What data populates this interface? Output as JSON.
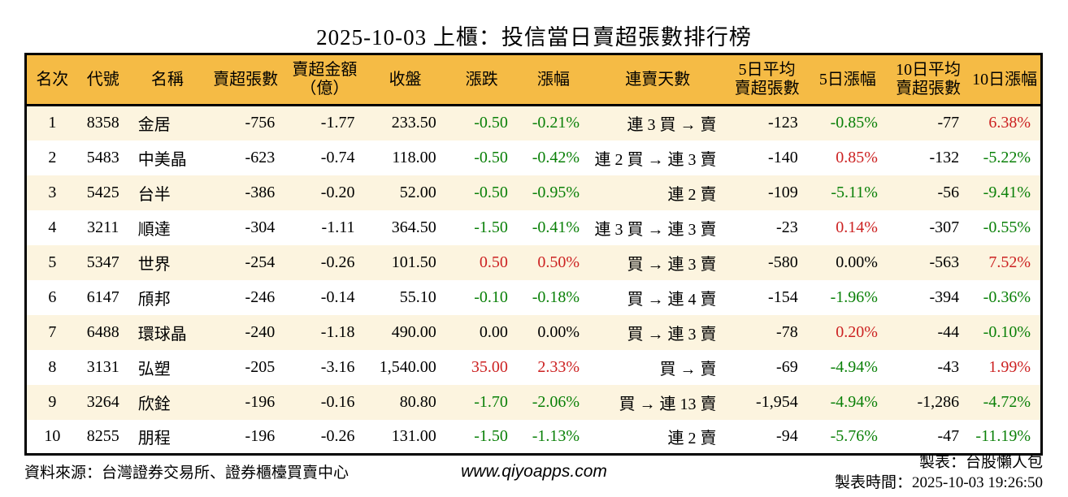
{
  "title": "2025-10-03 上櫃：投信當日賣超張數排行榜",
  "colors": {
    "up": "#cc2222",
    "down": "#0a8008",
    "header_bg": "#f5bb45",
    "row_alt": "#fcf4df",
    "border": "#000000"
  },
  "table": {
    "columns": [
      {
        "key": "rank",
        "label": "名次",
        "align": "center"
      },
      {
        "key": "code",
        "label": "代號",
        "align": "center"
      },
      {
        "key": "name",
        "label": "名稱",
        "align": "left"
      },
      {
        "key": "sell_vol",
        "label": "賣超張數",
        "align": "right"
      },
      {
        "key": "sell_amt",
        "label": "賣超金額\n（億）",
        "align": "right"
      },
      {
        "key": "close",
        "label": "收盤",
        "align": "right"
      },
      {
        "key": "chg",
        "label": "漲跌",
        "align": "right"
      },
      {
        "key": "chg_pct",
        "label": "漲幅",
        "align": "right"
      },
      {
        "key": "streak",
        "label": "連賣天數",
        "align": "right"
      },
      {
        "key": "avg5",
        "label": "5日平均\n賣超張數",
        "align": "right"
      },
      {
        "key": "pct5",
        "label": "5日漲幅",
        "align": "right"
      },
      {
        "key": "avg10",
        "label": "10日平均\n賣超張數",
        "align": "right"
      },
      {
        "key": "pct10",
        "label": "10日漲幅",
        "align": "right"
      }
    ],
    "rows": [
      {
        "rank": "1",
        "code": "8358",
        "name": "金居",
        "sell_vol": "-756",
        "sell_amt": "-1.77",
        "close": "233.50",
        "chg": {
          "t": "-0.50",
          "c": "down"
        },
        "chg_pct": {
          "t": "-0.21%",
          "c": "down"
        },
        "streak": "連 3 買 → 賣",
        "avg5": "-123",
        "pct5": {
          "t": "-0.85%",
          "c": "down"
        },
        "avg10": "-77",
        "pct10": {
          "t": "6.38%",
          "c": "up"
        }
      },
      {
        "rank": "2",
        "code": "5483",
        "name": "中美晶",
        "sell_vol": "-623",
        "sell_amt": "-0.74",
        "close": "118.00",
        "chg": {
          "t": "-0.50",
          "c": "down"
        },
        "chg_pct": {
          "t": "-0.42%",
          "c": "down"
        },
        "streak": "連 2 買 → 連 3 賣",
        "avg5": "-140",
        "pct5": {
          "t": "0.85%",
          "c": "up"
        },
        "avg10": "-132",
        "pct10": {
          "t": "-5.22%",
          "c": "down"
        }
      },
      {
        "rank": "3",
        "code": "5425",
        "name": "台半",
        "sell_vol": "-386",
        "sell_amt": "-0.20",
        "close": "52.00",
        "chg": {
          "t": "-0.50",
          "c": "down"
        },
        "chg_pct": {
          "t": "-0.95%",
          "c": "down"
        },
        "streak": "連 2 賣",
        "avg5": "-109",
        "pct5": {
          "t": "-5.11%",
          "c": "down"
        },
        "avg10": "-56",
        "pct10": {
          "t": "-9.41%",
          "c": "down"
        }
      },
      {
        "rank": "4",
        "code": "3211",
        "name": "順達",
        "sell_vol": "-304",
        "sell_amt": "-1.11",
        "close": "364.50",
        "chg": {
          "t": "-1.50",
          "c": "down"
        },
        "chg_pct": {
          "t": "-0.41%",
          "c": "down"
        },
        "streak": "連 3 買 → 連 3 賣",
        "avg5": "-23",
        "pct5": {
          "t": "0.14%",
          "c": "up"
        },
        "avg10": "-307",
        "pct10": {
          "t": "-0.55%",
          "c": "down"
        }
      },
      {
        "rank": "5",
        "code": "5347",
        "name": "世界",
        "sell_vol": "-254",
        "sell_amt": "-0.26",
        "close": "101.50",
        "chg": {
          "t": "0.50",
          "c": "up"
        },
        "chg_pct": {
          "t": "0.50%",
          "c": "up"
        },
        "streak": "買 → 連 3 賣",
        "avg5": "-580",
        "pct5": {
          "t": "0.00%",
          "c": "flat"
        },
        "avg10": "-563",
        "pct10": {
          "t": "7.52%",
          "c": "up"
        }
      },
      {
        "rank": "6",
        "code": "6147",
        "name": "頎邦",
        "sell_vol": "-246",
        "sell_amt": "-0.14",
        "close": "55.10",
        "chg": {
          "t": "-0.10",
          "c": "down"
        },
        "chg_pct": {
          "t": "-0.18%",
          "c": "down"
        },
        "streak": "買 → 連 4 賣",
        "avg5": "-154",
        "pct5": {
          "t": "-1.96%",
          "c": "down"
        },
        "avg10": "-394",
        "pct10": {
          "t": "-0.36%",
          "c": "down"
        }
      },
      {
        "rank": "7",
        "code": "6488",
        "name": "環球晶",
        "sell_vol": "-240",
        "sell_amt": "-1.18",
        "close": "490.00",
        "chg": {
          "t": "0.00",
          "c": "flat"
        },
        "chg_pct": {
          "t": "0.00%",
          "c": "flat"
        },
        "streak": "買 → 連 3 賣",
        "avg5": "-78",
        "pct5": {
          "t": "0.20%",
          "c": "up"
        },
        "avg10": "-44",
        "pct10": {
          "t": "-0.10%",
          "c": "down"
        }
      },
      {
        "rank": "8",
        "code": "3131",
        "name": "弘塑",
        "sell_vol": "-205",
        "sell_amt": "-3.16",
        "close": "1,540.00",
        "chg": {
          "t": "35.00",
          "c": "up"
        },
        "chg_pct": {
          "t": "2.33%",
          "c": "up"
        },
        "streak": "買 → 賣",
        "avg5": "-69",
        "pct5": {
          "t": "-4.94%",
          "c": "down"
        },
        "avg10": "-43",
        "pct10": {
          "t": "1.99%",
          "c": "up"
        }
      },
      {
        "rank": "9",
        "code": "3264",
        "name": "欣銓",
        "sell_vol": "-196",
        "sell_amt": "-0.16",
        "close": "80.80",
        "chg": {
          "t": "-1.70",
          "c": "down"
        },
        "chg_pct": {
          "t": "-2.06%",
          "c": "down"
        },
        "streak": "買 → 連 13 賣",
        "avg5": "-1,954",
        "pct5": {
          "t": "-4.94%",
          "c": "down"
        },
        "avg10": "-1,286",
        "pct10": {
          "t": "-4.72%",
          "c": "down"
        }
      },
      {
        "rank": "10",
        "code": "8255",
        "name": "朋程",
        "sell_vol": "-196",
        "sell_amt": "-0.26",
        "close": "131.00",
        "chg": {
          "t": "-1.50",
          "c": "down"
        },
        "chg_pct": {
          "t": "-1.13%",
          "c": "down"
        },
        "streak": "連 2 賣",
        "avg5": "-94",
        "pct5": {
          "t": "-5.76%",
          "c": "down"
        },
        "avg10": "-47",
        "pct10": {
          "t": "-11.19%",
          "c": "down"
        }
      }
    ]
  },
  "footer": {
    "source": "資料來源：台灣證券交易所、證券櫃檯買賣中心",
    "site": "www.qiyoapps.com",
    "maker": "製表：台股懶人包",
    "made_time": "製表時間：2025-10-03 19:26:50"
  }
}
